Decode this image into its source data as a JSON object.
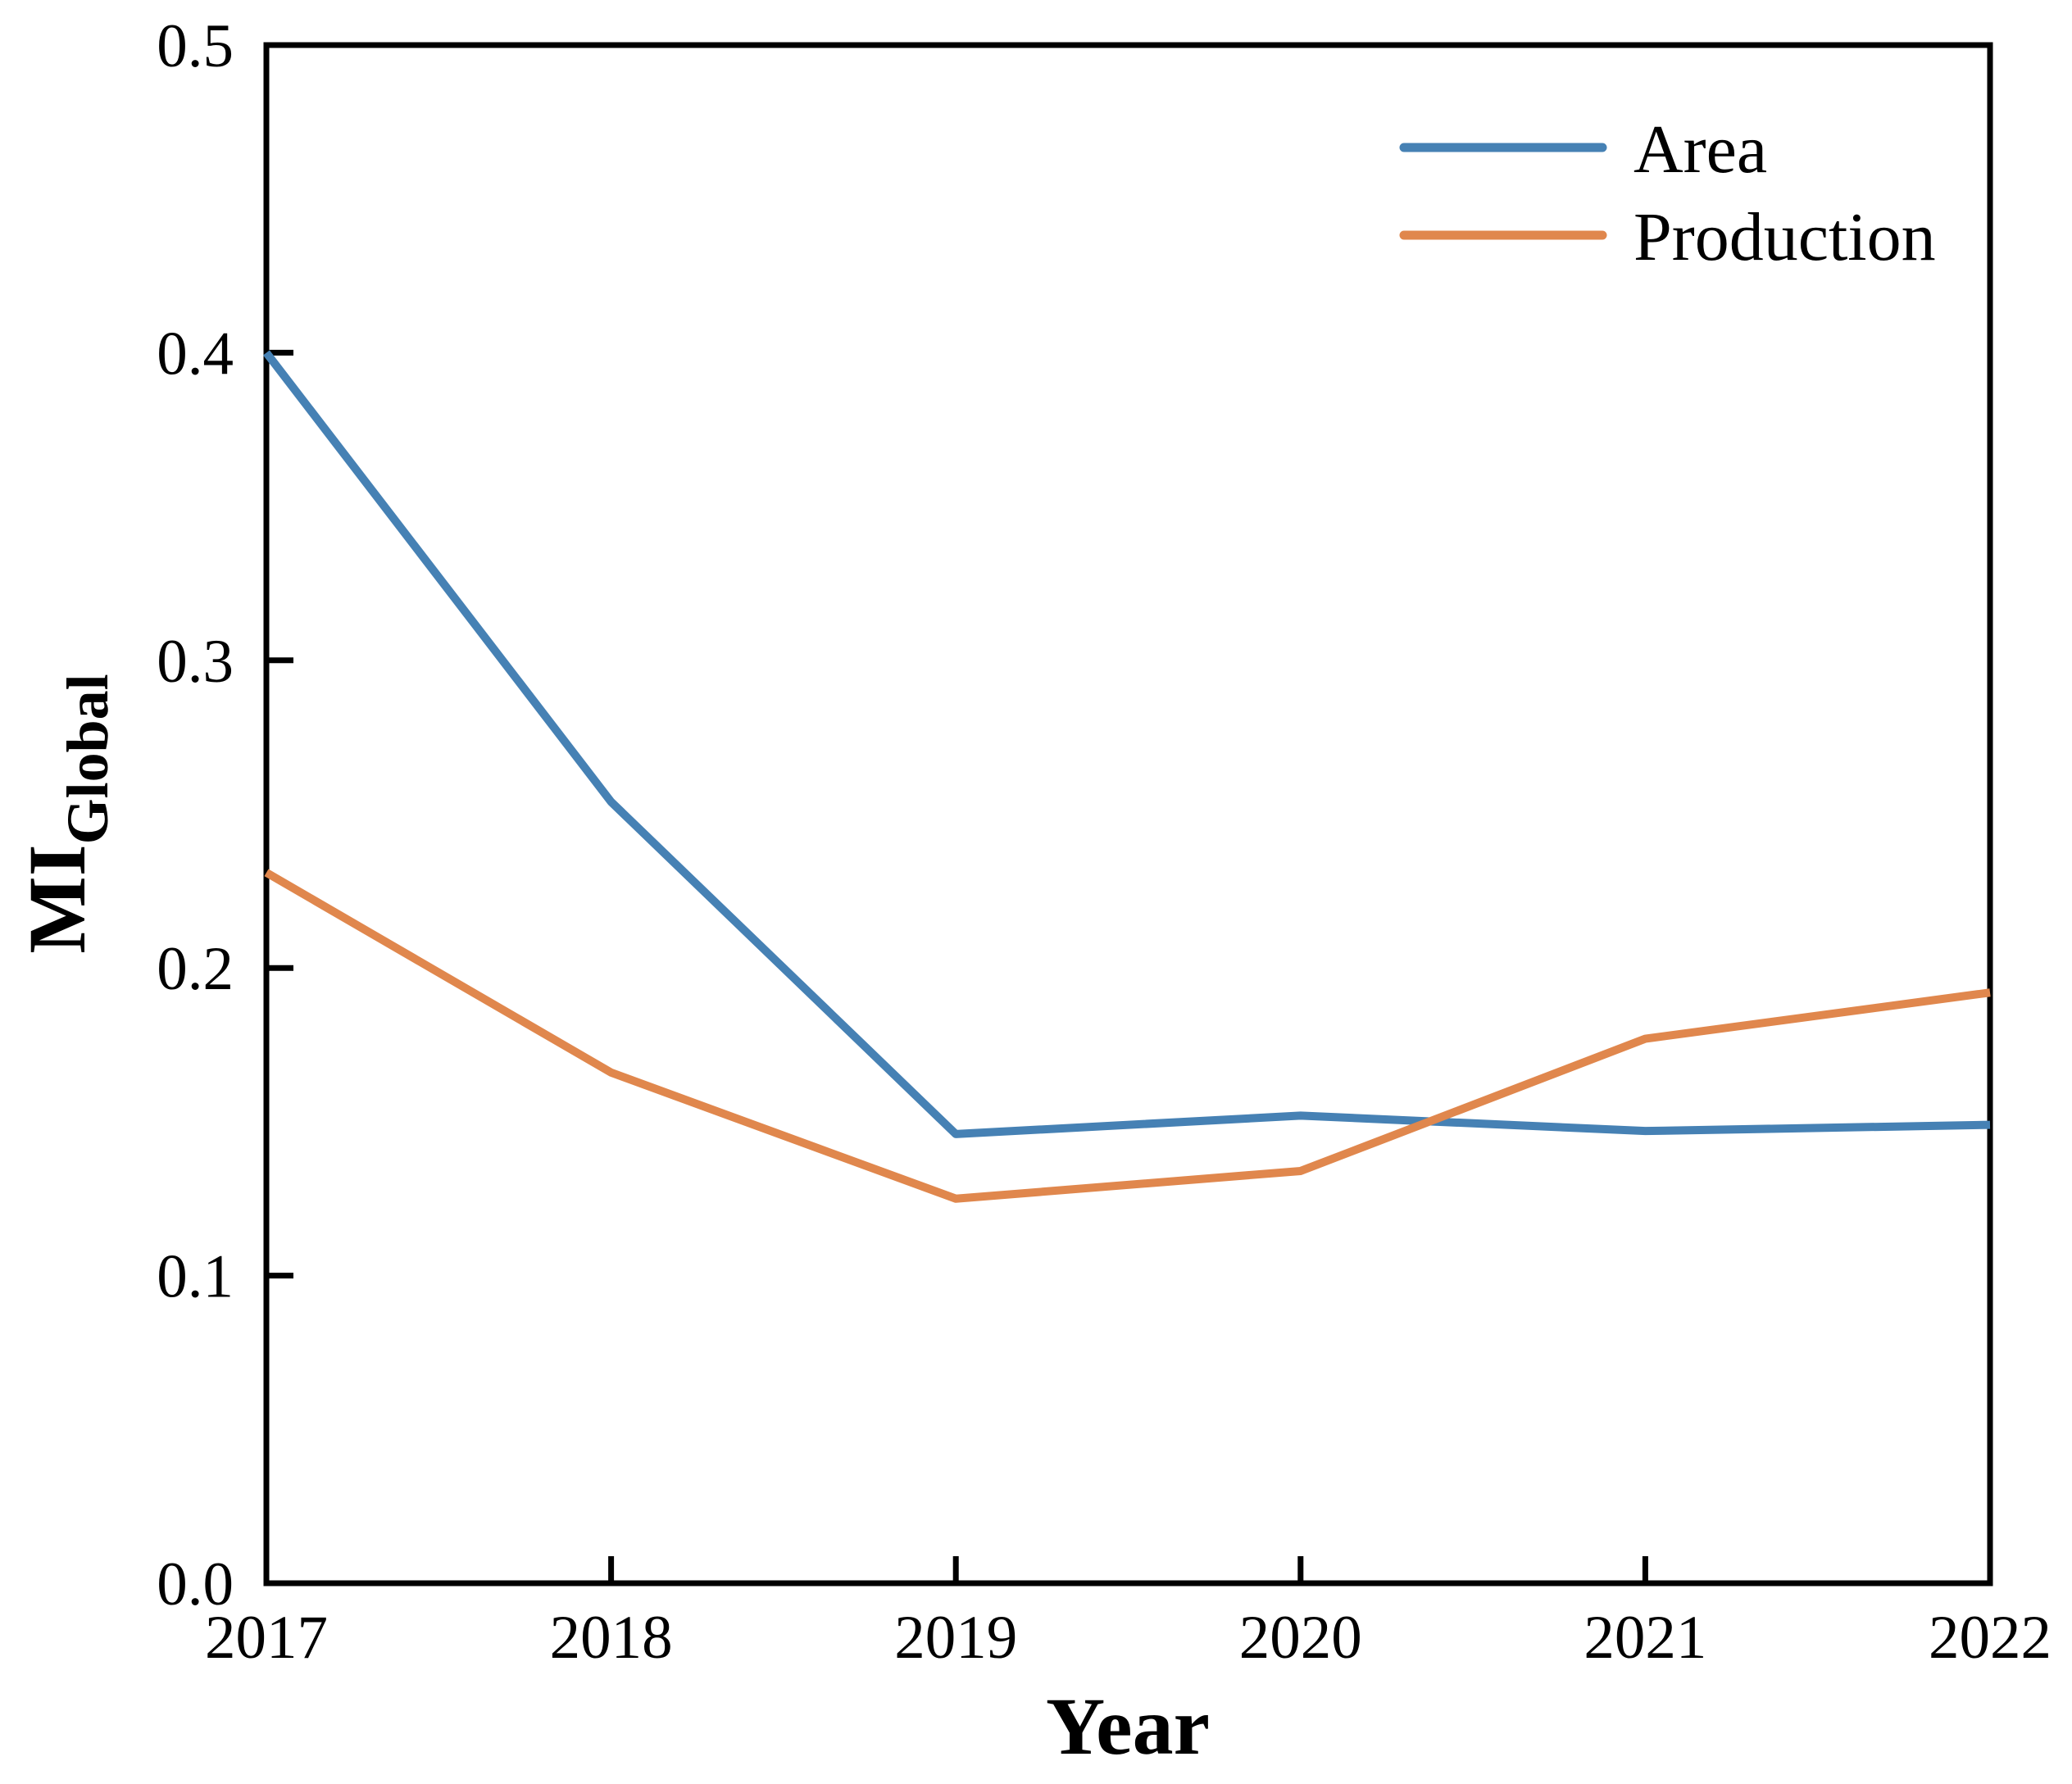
{
  "chart_data": {
    "type": "line",
    "title": "",
    "xlabel": "Year",
    "ylabel": "MI",
    "ylabel_subscript": "Global",
    "x": [
      2017,
      2018,
      2019,
      2020,
      2021,
      2022
    ],
    "xtick_labels": [
      "2017",
      "2018",
      "2019",
      "2020",
      "2021",
      "2022"
    ],
    "yticks": [
      0.0,
      0.1,
      0.2,
      0.3,
      0.4,
      0.5
    ],
    "ytick_labels": [
      "0.0",
      "0.1",
      "0.2",
      "0.3",
      "0.4",
      "0.5"
    ],
    "ylim": [
      0.0,
      0.5
    ],
    "xlim": [
      2017,
      2022
    ],
    "grid": false,
    "legend_position": "top-right",
    "series": [
      {
        "name": "Area",
        "color": "#4681B4",
        "values": [
          0.4,
          0.254,
          0.146,
          0.152,
          0.147,
          0.149
        ]
      },
      {
        "name": "Production",
        "color": "#E0874D",
        "values": [
          0.231,
          0.166,
          0.125,
          0.134,
          0.177,
          0.192
        ]
      }
    ],
    "axis_color": "#000000",
    "background_color": "#FFFFFF"
  }
}
